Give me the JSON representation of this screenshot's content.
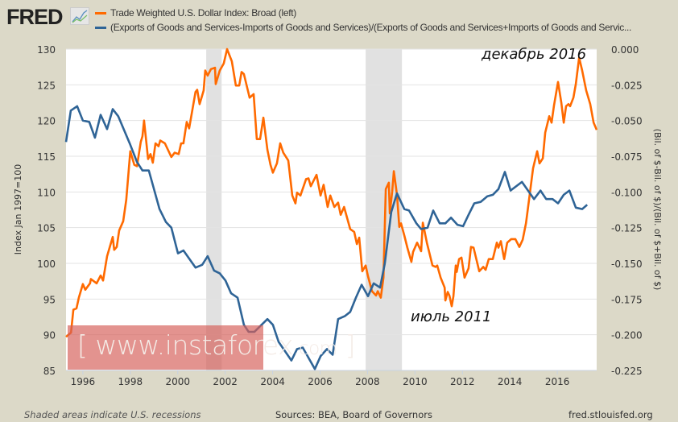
{
  "header": {
    "logo": "FRED",
    "legend": [
      {
        "label": "Trade Weighted U.S. Dollar Index: Broad (left)",
        "color": "#ff6a00"
      },
      {
        "label": "(Exports of Goods and Services-Imports of Goods and Services)/(Exports of Goods and Services+Imports of Goods and Servic...",
        "color": "#2f6496"
      }
    ]
  },
  "footer": {
    "recession_note": "Shaded areas indicate U.S. recessions",
    "sources": "Sources: BEA, Board of Governors",
    "site": "fred.stlouisfed.org"
  },
  "watermark": {
    "open": "[",
    "main": " www.instaforex",
    "suffix": ".com",
    "close": " ]"
  },
  "annotations": [
    {
      "text": "декабрь 2016"
    },
    {
      "text": "июль 2011"
    }
  ],
  "chart_data": {
    "type": "line",
    "xlim": [
      1995.29,
      2017.66
    ],
    "x_ticks": [
      "1996",
      "1998",
      "2000",
      "2002",
      "2004",
      "2006",
      "2008",
      "2010",
      "2012",
      "2014",
      "2016"
    ],
    "grid": true,
    "legend": "top",
    "recessions": [
      [
        2001.2,
        2001.85
      ],
      [
        2007.92,
        2009.45
      ]
    ],
    "y_left": {
      "label": "Index Jan 1997=100",
      "ylim": [
        85,
        130
      ],
      "ticks": [
        "85",
        "90",
        "95",
        "100",
        "105",
        "110",
        "115",
        "120",
        "125",
        "130"
      ]
    },
    "y_right": {
      "label": "(Bil. of $-Bil. of $)/(Bil. of $+Bil. of $)",
      "ylim": [
        -0.225,
        0
      ],
      "ticks": [
        "-0.225",
        "-0.200",
        "-0.175",
        "-0.150",
        "-0.125",
        "-0.100",
        "-0.075",
        "-0.050",
        "-0.025",
        "0.000"
      ]
    },
    "series": [
      {
        "name": "Trade Weighted U.S. Dollar Index: Broad (left)",
        "axis": "left",
        "color": "#ff6a00",
        "points": [
          [
            1995.29,
            89.7
          ],
          [
            1995.5,
            90.3
          ],
          [
            1995.6,
            93.5
          ],
          [
            1995.73,
            93.7
          ],
          [
            1995.83,
            95.2
          ],
          [
            1996.0,
            97.1
          ],
          [
            1996.1,
            96.3
          ],
          [
            1996.3,
            97.2
          ],
          [
            1996.34,
            97.8
          ],
          [
            1996.58,
            97.2
          ],
          [
            1996.75,
            98.3
          ],
          [
            1996.85,
            97.6
          ],
          [
            1997.02,
            101.0
          ],
          [
            1997.26,
            103.7
          ],
          [
            1997.32,
            101.9
          ],
          [
            1997.43,
            102.3
          ],
          [
            1997.53,
            104.6
          ],
          [
            1997.7,
            105.9
          ],
          [
            1997.83,
            108.9
          ],
          [
            1998.0,
            115.7
          ],
          [
            1998.17,
            113.8
          ],
          [
            1998.28,
            113.6
          ],
          [
            1998.44,
            117.0
          ],
          [
            1998.51,
            117.8
          ],
          [
            1998.58,
            120.0
          ],
          [
            1998.75,
            114.6
          ],
          [
            1998.85,
            115.3
          ],
          [
            1998.95,
            114.1
          ],
          [
            1999.06,
            116.8
          ],
          [
            1999.19,
            116.4
          ],
          [
            1999.26,
            117.2
          ],
          [
            1999.46,
            116.8
          ],
          [
            1999.73,
            114.9
          ],
          [
            1999.87,
            115.5
          ],
          [
            2000.04,
            115.3
          ],
          [
            2000.14,
            116.8
          ],
          [
            2000.24,
            116.8
          ],
          [
            2000.38,
            119.8
          ],
          [
            2000.48,
            118.9
          ],
          [
            2000.75,
            124.0
          ],
          [
            2000.82,
            124.3
          ],
          [
            2000.92,
            122.3
          ],
          [
            2001.09,
            124.2
          ],
          [
            2001.16,
            127.0
          ],
          [
            2001.26,
            126.3
          ],
          [
            2001.4,
            127.2
          ],
          [
            2001.57,
            127.4
          ],
          [
            2001.6,
            125.1
          ],
          [
            2001.77,
            127.0
          ],
          [
            2001.94,
            128.0
          ],
          [
            2002.08,
            130.0
          ],
          [
            2002.28,
            128.3
          ],
          [
            2002.45,
            124.9
          ],
          [
            2002.59,
            124.9
          ],
          [
            2002.69,
            126.8
          ],
          [
            2002.79,
            126.5
          ],
          [
            2003.03,
            123.2
          ],
          [
            2003.2,
            123.7
          ],
          [
            2003.33,
            117.4
          ],
          [
            2003.47,
            117.4
          ],
          [
            2003.61,
            120.4
          ],
          [
            2003.78,
            115.9
          ],
          [
            2003.91,
            113.8
          ],
          [
            2004.01,
            112.7
          ],
          [
            2004.18,
            114.0
          ],
          [
            2004.32,
            116.8
          ],
          [
            2004.45,
            115.5
          ],
          [
            2004.66,
            114.4
          ],
          [
            2004.83,
            109.5
          ],
          [
            2004.96,
            108.4
          ],
          [
            2005.03,
            109.9
          ],
          [
            2005.17,
            109.5
          ],
          [
            2005.41,
            111.8
          ],
          [
            2005.51,
            111.9
          ],
          [
            2005.61,
            110.8
          ],
          [
            2005.85,
            112.4
          ],
          [
            2006.02,
            109.5
          ],
          [
            2006.15,
            111.0
          ],
          [
            2006.32,
            107.9
          ],
          [
            2006.43,
            109.5
          ],
          [
            2006.6,
            107.9
          ],
          [
            2006.76,
            108.5
          ],
          [
            2006.87,
            106.8
          ],
          [
            2007.01,
            107.9
          ],
          [
            2007.27,
            104.8
          ],
          [
            2007.44,
            104.4
          ],
          [
            2007.55,
            102.7
          ],
          [
            2007.65,
            103.6
          ],
          [
            2007.78,
            98.9
          ],
          [
            2007.92,
            99.7
          ],
          [
            2008.02,
            98.2
          ],
          [
            2008.19,
            96.1
          ],
          [
            2008.36,
            95.5
          ],
          [
            2008.43,
            96.1
          ],
          [
            2008.56,
            95.2
          ],
          [
            2008.67,
            98.0
          ],
          [
            2008.77,
            110.4
          ],
          [
            2008.9,
            111.3
          ],
          [
            2008.94,
            107.0
          ],
          [
            2009.04,
            110.1
          ],
          [
            2009.11,
            112.9
          ],
          [
            2009.24,
            109.6
          ],
          [
            2009.34,
            105.1
          ],
          [
            2009.41,
            105.6
          ],
          [
            2009.55,
            103.9
          ],
          [
            2009.68,
            102.2
          ],
          [
            2009.85,
            100.2
          ],
          [
            2009.92,
            101.6
          ],
          [
            2010.09,
            102.9
          ],
          [
            2010.26,
            101.7
          ],
          [
            2010.33,
            105.7
          ],
          [
            2010.5,
            102.9
          ],
          [
            2010.74,
            99.7
          ],
          [
            2010.87,
            99.5
          ],
          [
            2010.94,
            99.7
          ],
          [
            2011.08,
            98.0
          ],
          [
            2011.25,
            96.6
          ],
          [
            2011.28,
            94.8
          ],
          [
            2011.38,
            96.0
          ],
          [
            2011.45,
            95.5
          ],
          [
            2011.55,
            94.0
          ],
          [
            2011.62,
            95.4
          ],
          [
            2011.72,
            99.7
          ],
          [
            2011.76,
            98.8
          ],
          [
            2011.86,
            100.6
          ],
          [
            2011.96,
            100.8
          ],
          [
            2012.09,
            98.0
          ],
          [
            2012.26,
            99.3
          ],
          [
            2012.36,
            102.3
          ],
          [
            2012.47,
            102.2
          ],
          [
            2012.71,
            98.9
          ],
          [
            2012.88,
            99.5
          ],
          [
            2012.98,
            99.1
          ],
          [
            2013.11,
            100.6
          ],
          [
            2013.28,
            100.6
          ],
          [
            2013.45,
            102.9
          ],
          [
            2013.52,
            102.2
          ],
          [
            2013.62,
            103.1
          ],
          [
            2013.76,
            100.6
          ],
          [
            2013.89,
            102.9
          ],
          [
            2014.06,
            103.4
          ],
          [
            2014.23,
            103.4
          ],
          [
            2014.4,
            102.3
          ],
          [
            2014.54,
            103.3
          ],
          [
            2014.68,
            105.6
          ],
          [
            2014.81,
            108.9
          ],
          [
            2014.98,
            113.3
          ],
          [
            2015.15,
            115.7
          ],
          [
            2015.25,
            114.0
          ],
          [
            2015.39,
            114.7
          ],
          [
            2015.49,
            118.3
          ],
          [
            2015.66,
            120.6
          ],
          [
            2015.76,
            119.7
          ],
          [
            2015.86,
            122.1
          ],
          [
            2016.03,
            125.4
          ],
          [
            2016.17,
            122.5
          ],
          [
            2016.27,
            119.7
          ],
          [
            2016.37,
            122.0
          ],
          [
            2016.47,
            122.3
          ],
          [
            2016.54,
            122.0
          ],
          [
            2016.68,
            123.2
          ],
          [
            2016.78,
            125.1
          ],
          [
            2016.92,
            128.8
          ],
          [
            2017.05,
            127.0
          ],
          [
            2017.22,
            124.2
          ],
          [
            2017.39,
            122.3
          ],
          [
            2017.53,
            119.7
          ],
          [
            2017.66,
            118.7
          ]
        ]
      },
      {
        "name": "(Exports of Goods and Services-Imports of Goods and Services)/(Exports of Goods and Services+Imports of Goods and Servic...",
        "axis": "right",
        "color": "#2f6496",
        "points": [
          [
            1995.29,
            -0.065
          ],
          [
            1995.49,
            -0.043
          ],
          [
            1995.76,
            -0.04
          ],
          [
            1996.0,
            -0.05
          ],
          [
            1996.27,
            -0.051
          ],
          [
            1996.51,
            -0.062
          ],
          [
            1996.75,
            -0.046
          ],
          [
            1997.02,
            -0.056
          ],
          [
            1997.26,
            -0.042
          ],
          [
            1997.49,
            -0.047
          ],
          [
            1998.0,
            -0.067
          ],
          [
            1998.28,
            -0.079
          ],
          [
            1998.51,
            -0.085
          ],
          [
            1998.78,
            -0.085
          ],
          [
            1999.23,
            -0.112
          ],
          [
            1999.5,
            -0.121
          ],
          [
            1999.73,
            -0.125
          ],
          [
            2000.01,
            -0.143
          ],
          [
            2000.24,
            -0.141
          ],
          [
            2000.75,
            -0.153
          ],
          [
            2001.03,
            -0.151
          ],
          [
            2001.26,
            -0.145
          ],
          [
            2001.53,
            -0.155
          ],
          [
            2001.77,
            -0.157
          ],
          [
            2002.01,
            -0.162
          ],
          [
            2002.25,
            -0.171
          ],
          [
            2002.52,
            -0.174
          ],
          [
            2002.79,
            -0.193
          ],
          [
            2002.99,
            -0.198
          ],
          [
            2003.23,
            -0.198
          ],
          [
            2003.78,
            -0.189
          ],
          [
            2004.01,
            -0.193
          ],
          [
            2004.25,
            -0.205
          ],
          [
            2004.79,
            -0.218
          ],
          [
            2005.03,
            -0.21
          ],
          [
            2005.27,
            -0.209
          ],
          [
            2005.78,
            -0.224
          ],
          [
            2006.02,
            -0.215
          ],
          [
            2006.29,
            -0.21
          ],
          [
            2006.53,
            -0.214
          ],
          [
            2006.76,
            -0.189
          ],
          [
            2007.04,
            -0.187
          ],
          [
            2007.27,
            -0.184
          ],
          [
            2007.51,
            -0.174
          ],
          [
            2007.75,
            -0.165
          ],
          [
            2008.02,
            -0.173
          ],
          [
            2008.26,
            -0.164
          ],
          [
            2008.53,
            -0.167
          ],
          [
            2008.73,
            -0.15
          ],
          [
            2009.0,
            -0.114
          ],
          [
            2009.24,
            -0.101
          ],
          [
            2009.55,
            -0.112
          ],
          [
            2009.75,
            -0.113
          ],
          [
            2010.06,
            -0.122
          ],
          [
            2010.26,
            -0.126
          ],
          [
            2010.53,
            -0.125
          ],
          [
            2010.77,
            -0.113
          ],
          [
            2011.04,
            -0.122
          ],
          [
            2011.28,
            -0.122
          ],
          [
            2011.52,
            -0.118
          ],
          [
            2011.79,
            -0.123
          ],
          [
            2012.03,
            -0.124
          ],
          [
            2012.26,
            -0.116
          ],
          [
            2012.5,
            -0.108
          ],
          [
            2012.77,
            -0.107
          ],
          [
            2013.05,
            -0.103
          ],
          [
            2013.28,
            -0.102
          ],
          [
            2013.52,
            -0.098
          ],
          [
            2013.79,
            -0.086
          ],
          [
            2014.03,
            -0.099
          ],
          [
            2014.51,
            -0.093
          ],
          [
            2015.02,
            -0.105
          ],
          [
            2015.29,
            -0.099
          ],
          [
            2015.53,
            -0.105
          ],
          [
            2015.8,
            -0.105
          ],
          [
            2016.03,
            -0.108
          ],
          [
            2016.27,
            -0.102
          ],
          [
            2016.51,
            -0.099
          ],
          [
            2016.78,
            -0.111
          ],
          [
            2017.05,
            -0.112
          ],
          [
            2017.26,
            -0.109
          ]
        ]
      }
    ]
  }
}
